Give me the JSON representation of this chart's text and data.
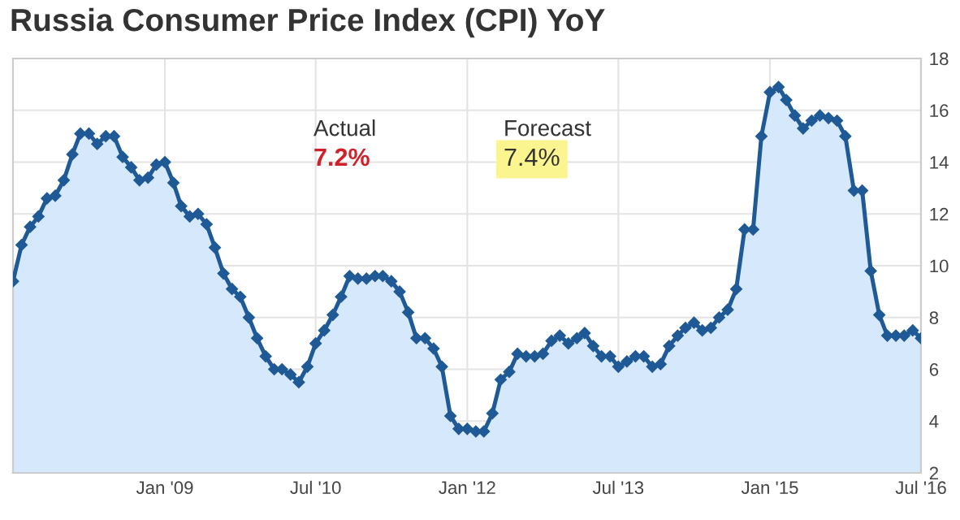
{
  "chart_data": {
    "type": "area",
    "title": "Russia Consumer Price Index (CPI) YoY",
    "x": [
      "2007-07",
      "2007-08",
      "2007-09",
      "2007-10",
      "2007-11",
      "2007-12",
      "2008-01",
      "2008-02",
      "2008-03",
      "2008-04",
      "2008-05",
      "2008-06",
      "2008-07",
      "2008-08",
      "2008-09",
      "2008-10",
      "2008-11",
      "2008-12",
      "2009-01",
      "2009-02",
      "2009-03",
      "2009-04",
      "2009-05",
      "2009-06",
      "2009-07",
      "2009-08",
      "2009-09",
      "2009-10",
      "2009-11",
      "2009-12",
      "2010-01",
      "2010-02",
      "2010-03",
      "2010-04",
      "2010-05",
      "2010-06",
      "2010-07",
      "2010-08",
      "2010-09",
      "2010-10",
      "2010-11",
      "2010-12",
      "2011-01",
      "2011-02",
      "2011-03",
      "2011-04",
      "2011-05",
      "2011-06",
      "2011-07",
      "2011-08",
      "2011-09",
      "2011-10",
      "2011-11",
      "2011-12",
      "2012-01",
      "2012-02",
      "2012-03",
      "2012-04",
      "2012-05",
      "2012-06",
      "2012-07",
      "2012-08",
      "2012-09",
      "2012-10",
      "2012-11",
      "2012-12",
      "2013-01",
      "2013-02",
      "2013-03",
      "2013-04",
      "2013-05",
      "2013-06",
      "2013-07",
      "2013-08",
      "2013-09",
      "2013-10",
      "2013-11",
      "2013-12",
      "2014-01",
      "2014-02",
      "2014-03",
      "2014-04",
      "2014-05",
      "2014-06",
      "2014-07",
      "2014-08",
      "2014-09",
      "2014-10",
      "2014-11",
      "2014-12",
      "2015-01",
      "2015-02",
      "2015-03",
      "2015-04",
      "2015-05",
      "2015-06",
      "2015-07",
      "2015-08",
      "2015-09",
      "2015-10",
      "2015-11",
      "2015-12",
      "2016-01",
      "2016-02",
      "2016-03",
      "2016-04",
      "2016-05",
      "2016-06",
      "2016-07"
    ],
    "series": [
      {
        "color": "#1f5a96",
        "values": [
          9.4,
          10.8,
          11.5,
          11.9,
          12.6,
          12.7,
          13.3,
          14.3,
          15.1,
          15.1,
          14.7,
          15.0,
          15.0,
          14.2,
          13.8,
          13.3,
          13.4,
          13.9,
          14.0,
          13.2,
          12.3,
          11.9,
          12.0,
          11.6,
          10.7,
          9.7,
          9.1,
          8.8,
          8.0,
          7.2,
          6.5,
          6.0,
          6.0,
          5.8,
          5.5,
          6.1,
          7.0,
          7.5,
          8.1,
          8.8,
          9.6,
          9.5,
          9.5,
          9.6,
          9.6,
          9.4,
          9.0,
          8.2,
          7.2,
          7.2,
          6.8,
          6.1,
          4.2,
          3.7,
          3.7,
          3.6,
          3.6,
          4.3,
          5.6,
          5.9,
          6.6,
          6.5,
          6.5,
          6.6,
          7.1,
          7.3,
          7.0,
          7.2,
          7.4,
          6.9,
          6.5,
          6.5,
          6.1,
          6.3,
          6.5,
          6.5,
          6.1,
          6.2,
          6.9,
          7.3,
          7.6,
          7.8,
          7.5,
          7.6,
          8.0,
          8.3,
          9.1,
          11.4,
          11.4,
          15.0,
          16.7,
          16.9,
          16.4,
          15.8,
          15.3,
          15.6,
          15.8,
          15.7,
          15.6,
          15.0,
          12.9,
          12.9,
          9.8,
          8.1,
          7.3,
          7.3,
          7.3,
          7.5,
          7.2
        ]
      }
    ],
    "xlim": [
      "2007-07",
      "2016-07"
    ],
    "xticks": [
      {
        "value": "2009-01",
        "label": "Jan '09"
      },
      {
        "value": "2010-07",
        "label": "Jul '10"
      },
      {
        "value": "2012-01",
        "label": "Jan '12"
      },
      {
        "value": "2013-07",
        "label": "Jul '13"
      },
      {
        "value": "2015-01",
        "label": "Jan '15"
      },
      {
        "value": "2016-07",
        "label": "Jul '16"
      }
    ],
    "ylim": [
      2,
      18
    ],
    "yticks": [
      2,
      4,
      6,
      8,
      10,
      12,
      14,
      16,
      18
    ],
    "grid": true,
    "marker": "diamond",
    "line_style": "solid",
    "annotations": [
      "Actual",
      "7.2%",
      "Forecast",
      "7.4%"
    ]
  }
}
